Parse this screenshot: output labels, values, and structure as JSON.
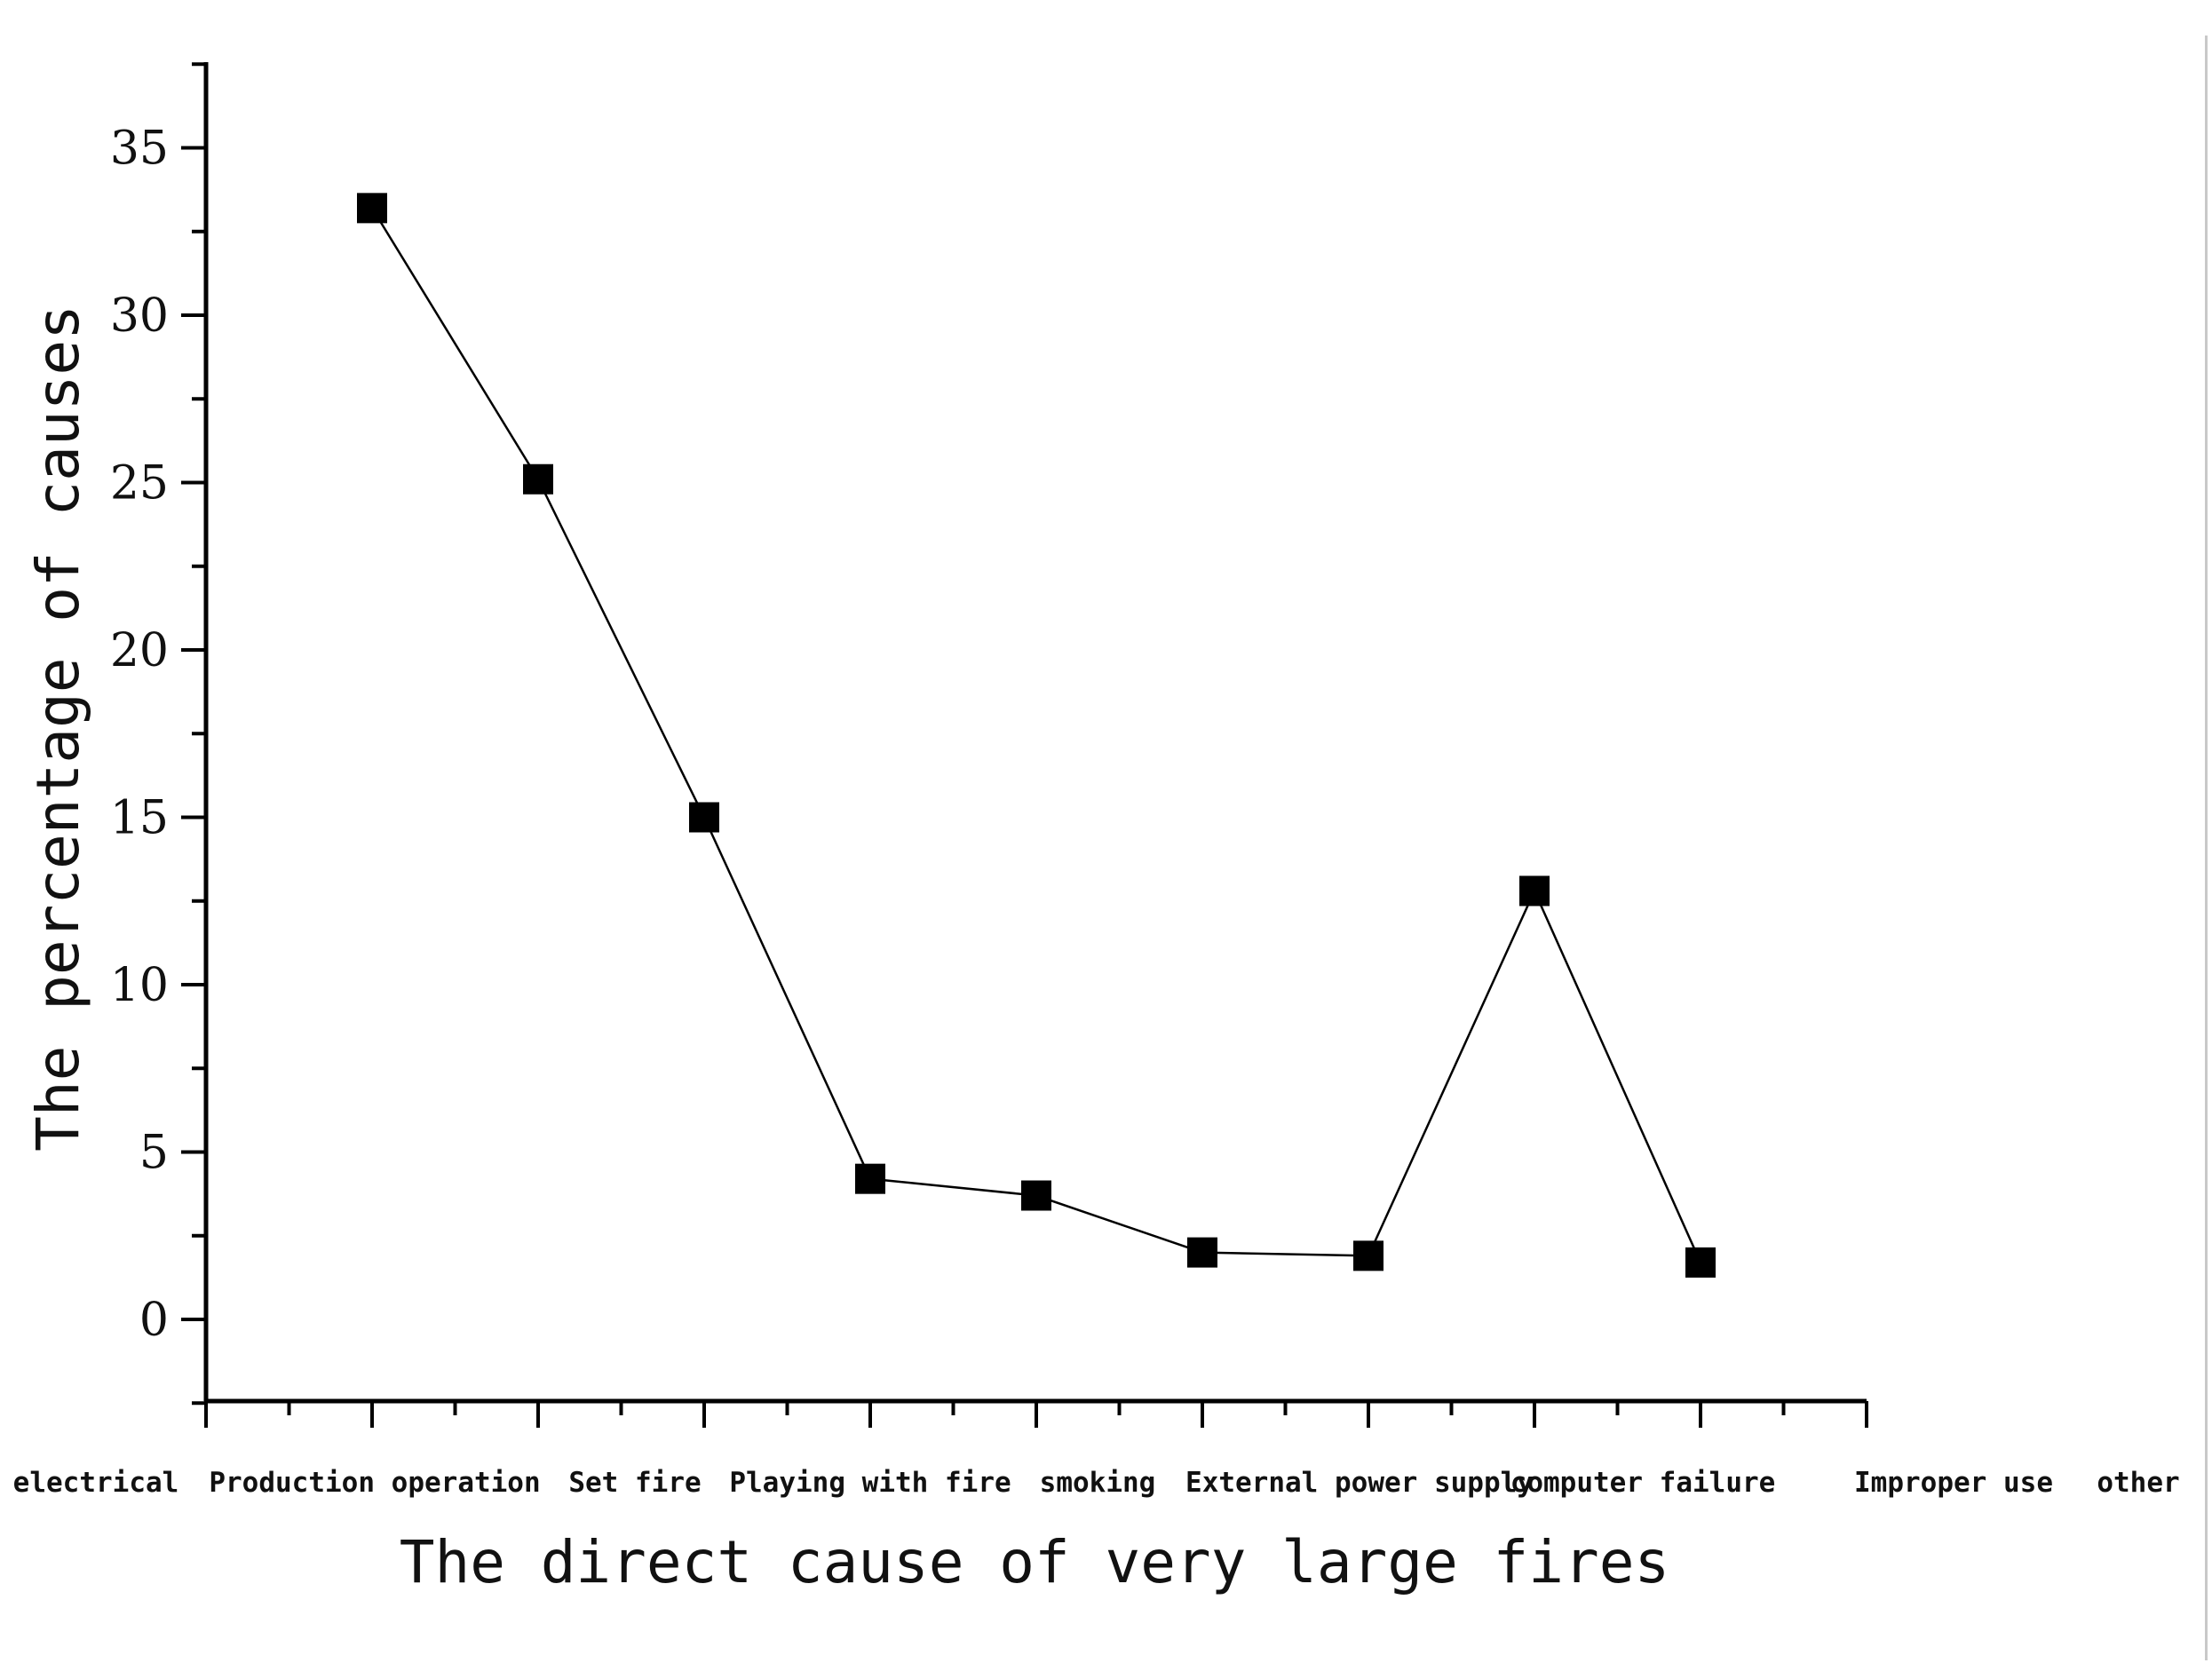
{
  "chart_data": {
    "type": "line",
    "xlabel": "The direct cause of very large fires",
    "ylabel": "The percentage of causes",
    "categories": [
      "electrical",
      "Production operation",
      "Set fire",
      "Playing with fire",
      "smoking",
      "External power supply",
      "computer failure",
      "Improper use",
      "other"
    ],
    "series": [
      {
        "values": [
          33.2,
          25.1,
          15.0,
          4.2,
          3.7,
          2.0,
          1.9,
          12.8,
          1.7
        ]
      }
    ],
    "yticks": [
      0,
      5,
      10,
      15,
      20,
      25,
      30,
      35
    ],
    "ylim": [
      -2.5,
      37.5
    ],
    "grid": false,
    "legend": "none",
    "marker": "square",
    "color": "#000000"
  }
}
